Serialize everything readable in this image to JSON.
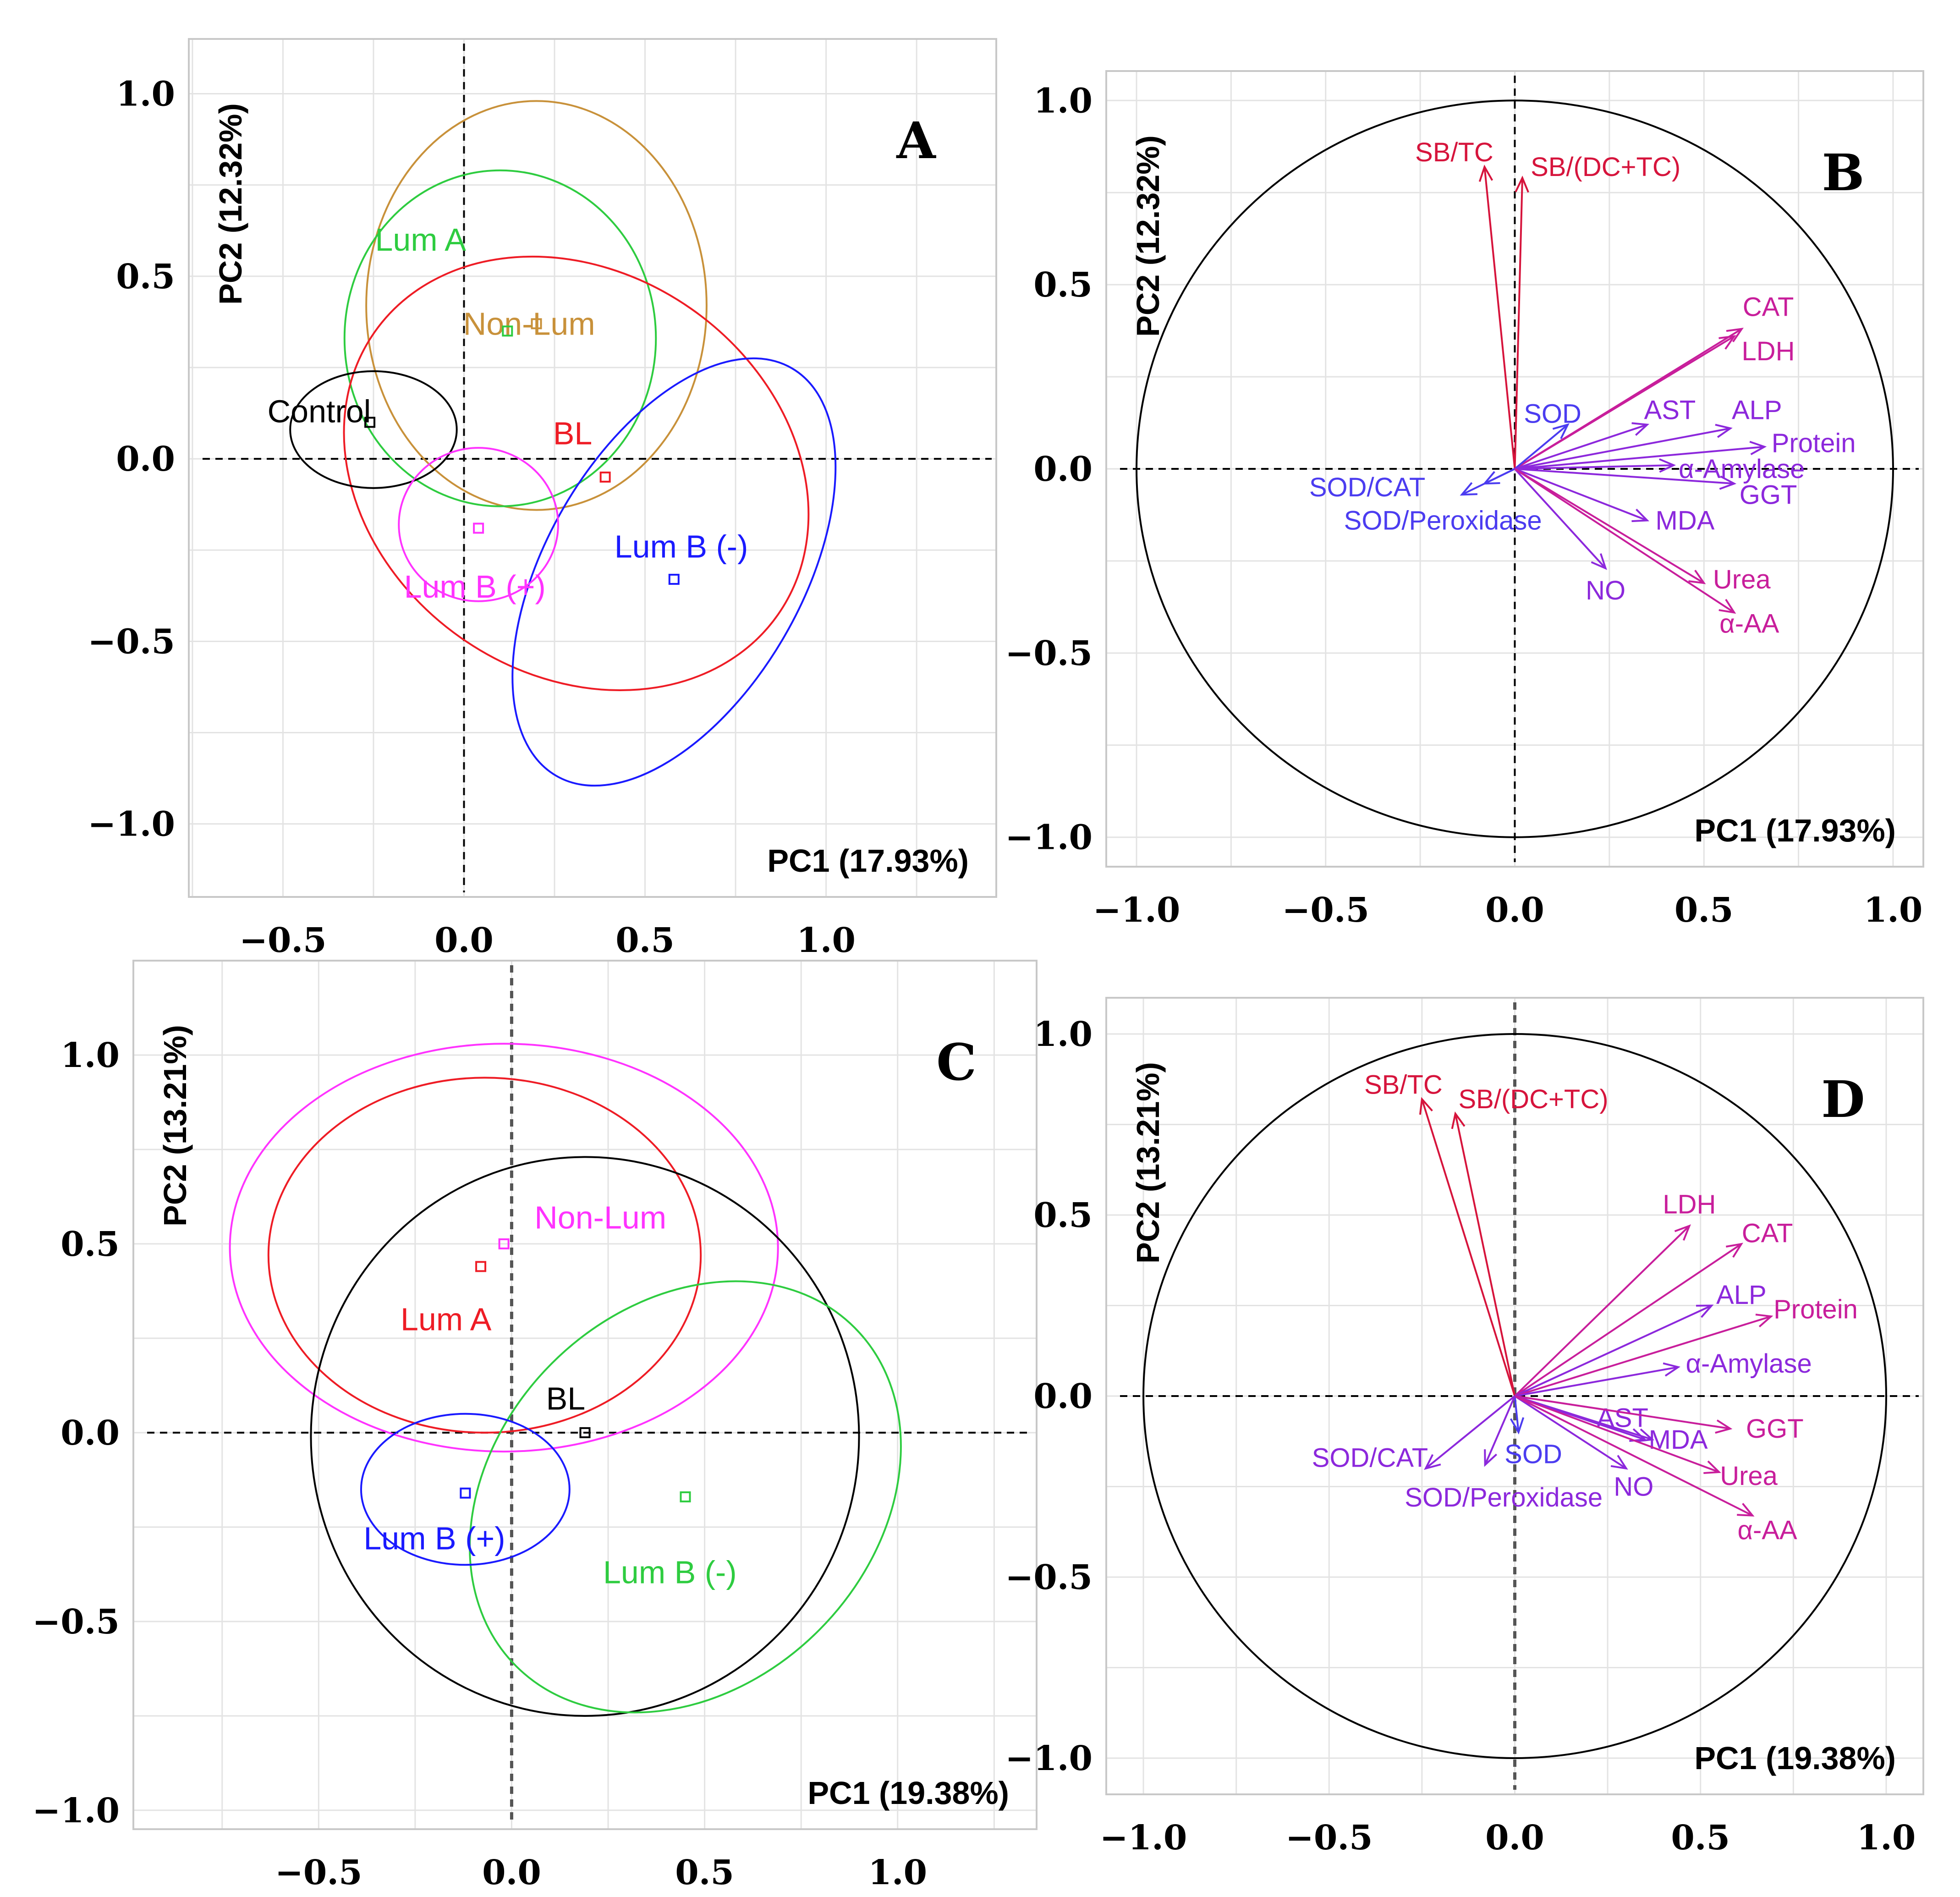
{
  "colors": {
    "red": "#ee1c25",
    "green": "#2ecc40",
    "blue": "#1a1aff",
    "magenta": "#ff33ff",
    "gold": "#c8913a",
    "black": "#000000",
    "arrow_red": "#d6143c",
    "arrow_magenta": "#c81e9b",
    "arrow_purple": "#8c28dc",
    "arrow_blue": "#4b3cf0"
  },
  "chart_data": [
    {
      "id": "A",
      "panel_label": "A",
      "type": "scatter",
      "subtype": "pca-score-plot-with-ellipses",
      "xlabel": "PC1 (17.93%)",
      "ylabel": "PC2 (12.32%)",
      "xlim": [
        -0.76,
        1.47
      ],
      "ylim": [
        -1.2,
        1.15
      ],
      "xticks": [
        -0.5,
        0.0,
        0.5,
        1.0
      ],
      "yticks": [
        -1.0,
        -0.5,
        0.0,
        0.5,
        1.0
      ],
      "xtick_labels": [
        "−0.5",
        "0.0",
        "0.5",
        "1.0"
      ],
      "ytick_labels": [
        "−1.0",
        "−0.5",
        "0.0",
        "0.5",
        "1.0"
      ],
      "groups": [
        {
          "name": "Non-Lum",
          "color": "gold",
          "x": 0.2,
          "y": 0.37,
          "ellipse": {
            "cx": 0.2,
            "cy": 0.42,
            "rx": 0.47,
            "ry": 0.56,
            "angle": 0
          },
          "label_x": 0.18,
          "label_y": 0.37
        },
        {
          "name": "Lum A",
          "color": "green",
          "x": 0.12,
          "y": 0.35,
          "ellipse": {
            "cx": 0.1,
            "cy": 0.33,
            "rx": 0.43,
            "ry": 0.46,
            "angle": 0
          },
          "label_x": -0.12,
          "label_y": 0.6
        },
        {
          "name": "BL",
          "color": "red",
          "x": 0.39,
          "y": -0.05,
          "ellipse": {
            "cx": 0.31,
            "cy": -0.04,
            "rx": 0.68,
            "ry": 0.55,
            "angle": 35
          },
          "label_x": 0.3,
          "label_y": 0.07
        },
        {
          "name": "Control",
          "color": "black",
          "x": -0.26,
          "y": 0.1,
          "ellipse": {
            "cx": -0.25,
            "cy": 0.08,
            "rx": 0.23,
            "ry": 0.16,
            "angle": 0
          },
          "label_x": -0.4,
          "label_y": 0.13
        },
        {
          "name": "Lum B (-)",
          "color": "blue",
          "x": 0.58,
          "y": -0.33,
          "ellipse": {
            "cx": 0.58,
            "cy": -0.31,
            "rx": 0.65,
            "ry": 0.35,
            "angle": -60
          },
          "label_x": 0.6,
          "label_y": -0.24
        },
        {
          "name": "Lum B (+)",
          "color": "magenta",
          "x": 0.04,
          "y": -0.19,
          "ellipse": {
            "cx": 0.04,
            "cy": -0.18,
            "rx": 0.22,
            "ry": 0.21,
            "angle": 0
          },
          "label_x": 0.03,
          "label_y": -0.35
        }
      ]
    },
    {
      "id": "B",
      "panel_label": "B",
      "type": "scatter",
      "subtype": "pca-correlation-circle",
      "xlabel": "PC1 (17.93%)",
      "ylabel": "PC2 (12.32%)",
      "xlim": [
        -1.08,
        1.08
      ],
      "ylim": [
        -1.08,
        1.08
      ],
      "xticks": [
        -1.0,
        -0.5,
        0.0,
        0.5,
        1.0
      ],
      "yticks": [
        -1.0,
        -0.5,
        0.0,
        0.5,
        1.0
      ],
      "xtick_labels": [
        "−1.0",
        "−0.5",
        "0.0",
        "0.5",
        "1.0"
      ],
      "ytick_labels": [
        "−1.0",
        "−0.5",
        "0.0",
        "0.5",
        "1.0"
      ],
      "circle_radius": 1.0,
      "variables": [
        {
          "name": "SB/TC",
          "x": -0.08,
          "y": 0.82,
          "color": "arrow_red",
          "label_x": -0.16,
          "label_y": 0.86
        },
        {
          "name": "SB/(DC+TC)",
          "x": 0.02,
          "y": 0.79,
          "color": "arrow_red",
          "label_x": 0.24,
          "label_y": 0.82
        },
        {
          "name": "CAT",
          "x": 0.6,
          "y": 0.38,
          "color": "arrow_magenta",
          "label_x": 0.67,
          "label_y": 0.44
        },
        {
          "name": "LDH",
          "x": 0.58,
          "y": 0.36,
          "color": "arrow_magenta",
          "label_x": 0.67,
          "label_y": 0.32
        },
        {
          "name": "SOD",
          "x": 0.14,
          "y": 0.12,
          "color": "arrow_blue",
          "label_x": 0.1,
          "label_y": 0.15
        },
        {
          "name": "AST",
          "x": 0.35,
          "y": 0.12,
          "color": "arrow_purple",
          "label_x": 0.41,
          "label_y": 0.16
        },
        {
          "name": "ALP",
          "x": 0.57,
          "y": 0.11,
          "color": "arrow_purple",
          "label_x": 0.64,
          "label_y": 0.16
        },
        {
          "name": "Protein",
          "x": 0.66,
          "y": 0.06,
          "color": "arrow_purple",
          "label_x": 0.79,
          "label_y": 0.07
        },
        {
          "name": "α-Amylase",
          "x": 0.42,
          "y": 0.01,
          "color": "arrow_purple",
          "label_x": 0.6,
          "label_y": 0.0
        },
        {
          "name": "GGT",
          "x": 0.58,
          "y": -0.04,
          "color": "arrow_purple",
          "label_x": 0.67,
          "label_y": -0.07
        },
        {
          "name": "SOD/CAT",
          "x": -0.14,
          "y": -0.07,
          "color": "arrow_blue",
          "label_x": -0.39,
          "label_y": -0.05
        },
        {
          "name": "SOD/Peroxidase",
          "x": -0.08,
          "y": -0.04,
          "color": "arrow_blue",
          "label_x": -0.19,
          "label_y": -0.14
        },
        {
          "name": "MDA",
          "x": 0.35,
          "y": -0.14,
          "color": "arrow_purple",
          "label_x": 0.45,
          "label_y": -0.14
        },
        {
          "name": "NO",
          "x": 0.24,
          "y": -0.27,
          "color": "arrow_purple",
          "label_x": 0.24,
          "label_y": -0.33
        },
        {
          "name": "Urea",
          "x": 0.5,
          "y": -0.31,
          "color": "arrow_magenta",
          "label_x": 0.6,
          "label_y": -0.3
        },
        {
          "name": "α-AA",
          "x": 0.58,
          "y": -0.39,
          "color": "arrow_magenta",
          "label_x": 0.62,
          "label_y": -0.42
        }
      ]
    },
    {
      "id": "C",
      "panel_label": "C",
      "type": "scatter",
      "subtype": "pca-score-plot-with-ellipses",
      "xlabel": "PC1 (19.38%)",
      "ylabel": "PC2 (13.21%)",
      "xlim": [
        -0.98,
        1.36
      ],
      "ylim": [
        -1.05,
        1.25
      ],
      "xticks": [
        -0.5,
        0.0,
        0.5,
        1.0
      ],
      "yticks": [
        -1.0,
        -0.5,
        0.0,
        0.5,
        1.0
      ],
      "xtick_labels": [
        "−0.5",
        "0.0",
        "0.5",
        "1.0"
      ],
      "ytick_labels": [
        "−1.0",
        "−0.5",
        "0.0",
        "0.5",
        "1.0"
      ],
      "groups": [
        {
          "name": "Non-Lum",
          "color": "magenta",
          "x": -0.02,
          "y": 0.5,
          "ellipse": {
            "cx": -0.02,
            "cy": 0.49,
            "rx": 0.71,
            "ry": 0.54,
            "angle": 0
          },
          "label_x": 0.23,
          "label_y": 0.57
        },
        {
          "name": "Lum A",
          "color": "red",
          "x": -0.08,
          "y": 0.44,
          "ellipse": {
            "cx": -0.07,
            "cy": 0.47,
            "rx": 0.56,
            "ry": 0.47,
            "angle": 0
          },
          "label_x": -0.17,
          "label_y": 0.3
        },
        {
          "name": "BL",
          "color": "black",
          "x": 0.19,
          "y": 0.0,
          "ellipse": {
            "cx": 0.19,
            "cy": -0.01,
            "rx": 0.71,
            "ry": 0.74,
            "angle": 0
          },
          "label_x": 0.14,
          "label_y": 0.09
        },
        {
          "name": "Lum B (-)",
          "color": "green",
          "x": 0.45,
          "y": -0.17,
          "ellipse": {
            "cx": 0.45,
            "cy": -0.17,
            "rx": 0.62,
            "ry": 0.5,
            "angle": -45
          },
          "label_x": 0.41,
          "label_y": -0.37
        },
        {
          "name": "Lum B (+)",
          "color": "blue",
          "x": -0.12,
          "y": -0.16,
          "ellipse": {
            "cx": -0.12,
            "cy": -0.15,
            "rx": 0.27,
            "ry": 0.2,
            "angle": 0
          },
          "label_x": -0.2,
          "label_y": -0.28
        }
      ]
    },
    {
      "id": "D",
      "panel_label": "D",
      "type": "scatter",
      "subtype": "pca-correlation-circle",
      "xlabel": "PC1 (19.38%)",
      "ylabel": "PC2 (13.21%)",
      "xlim": [
        -1.1,
        1.1
      ],
      "ylim": [
        -1.1,
        1.1
      ],
      "xticks": [
        -1.0,
        -0.5,
        0.0,
        0.5,
        1.0
      ],
      "yticks": [
        -1.0,
        -0.5,
        0.0,
        0.5,
        1.0
      ],
      "xtick_labels": [
        "−1.0",
        "−0.5",
        "0.0",
        "0.5",
        "1.0"
      ],
      "ytick_labels": [
        "−1.0",
        "−0.5",
        "0.0",
        "0.5",
        "1.0"
      ],
      "circle_radius": 1.0,
      "variables": [
        {
          "name": "SB/TC",
          "x": -0.25,
          "y": 0.82,
          "color": "arrow_red",
          "label_x": -0.3,
          "label_y": 0.86
        },
        {
          "name": "SB/(DC+TC)",
          "x": -0.16,
          "y": 0.78,
          "color": "arrow_red",
          "label_x": 0.05,
          "label_y": 0.82
        },
        {
          "name": "LDH",
          "x": 0.47,
          "y": 0.47,
          "color": "arrow_magenta",
          "label_x": 0.47,
          "label_y": 0.53
        },
        {
          "name": "CAT",
          "x": 0.61,
          "y": 0.42,
          "color": "arrow_magenta",
          "label_x": 0.68,
          "label_y": 0.45
        },
        {
          "name": "ALP",
          "x": 0.53,
          "y": 0.25,
          "color": "arrow_purple",
          "label_x": 0.61,
          "label_y": 0.28
        },
        {
          "name": "Protein",
          "x": 0.69,
          "y": 0.22,
          "color": "arrow_magenta",
          "label_x": 0.81,
          "label_y": 0.24
        },
        {
          "name": "α-Amylase",
          "x": 0.44,
          "y": 0.08,
          "color": "arrow_purple",
          "label_x": 0.63,
          "label_y": 0.09
        },
        {
          "name": "AST",
          "x": 0.35,
          "y": -0.12,
          "color": "arrow_purple",
          "label_x": 0.29,
          "label_y": -0.06
        },
        {
          "name": "GGT",
          "x": 0.58,
          "y": -0.09,
          "color": "arrow_magenta",
          "label_x": 0.7,
          "label_y": -0.09
        },
        {
          "name": "MDA",
          "x": 0.37,
          "y": -0.12,
          "color": "arrow_purple",
          "label_x": 0.44,
          "label_y": -0.12
        },
        {
          "name": "SOD",
          "x": 0.01,
          "y": -0.1,
          "color": "arrow_blue",
          "label_x": 0.05,
          "label_y": -0.16
        },
        {
          "name": "NO",
          "x": 0.3,
          "y": -0.2,
          "color": "arrow_purple",
          "label_x": 0.32,
          "label_y": -0.25
        },
        {
          "name": "Urea",
          "x": 0.55,
          "y": -0.21,
          "color": "arrow_magenta",
          "label_x": 0.63,
          "label_y": -0.22
        },
        {
          "name": "α-AA",
          "x": 0.64,
          "y": -0.33,
          "color": "arrow_magenta",
          "label_x": 0.68,
          "label_y": -0.37
        },
        {
          "name": "SOD/CAT",
          "x": -0.24,
          "y": -0.2,
          "color": "arrow_purple",
          "label_x": -0.39,
          "label_y": -0.17
        },
        {
          "name": "SOD/Peroxidase",
          "x": -0.08,
          "y": -0.19,
          "color": "arrow_purple",
          "label_x": -0.03,
          "label_y": -0.28
        }
      ]
    }
  ]
}
